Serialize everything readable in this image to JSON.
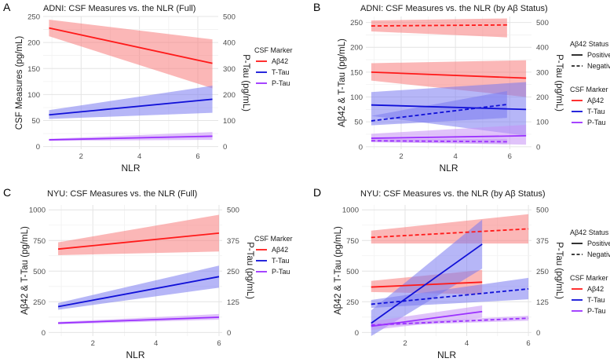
{
  "figure": {
    "panels": [
      "A",
      "B",
      "C",
      "D"
    ]
  },
  "chart_data": [
    {
      "panel_letter": "A",
      "type": "line",
      "title": "ADNI: CSF Measures vs. the NLR (Full)",
      "xlabel": "NLR",
      "ylabel": "CSF Measures (pg/mL)",
      "y2label": "P-Tau (pg/mL)",
      "xlim": [
        0.7,
        6.7
      ],
      "ylim": [
        -5,
        250
      ],
      "y2lim": [
        -10,
        500
      ],
      "xticks": [
        2,
        4,
        6
      ],
      "yticks": [
        0,
        50,
        100,
        150,
        200,
        250
      ],
      "y2ticks": [
        0,
        100,
        200,
        300,
        400,
        500
      ],
      "legend": {
        "title": "CSF Marker",
        "position": "right",
        "entries": [
          "Aβ42",
          "T-Tau",
          "P-Tau"
        ]
      },
      "series": [
        {
          "name": "Aβ42",
          "color": "#ff1a1a",
          "band": "#f87b7b",
          "axis": "left",
          "dash": false,
          "x": [
            0.9,
            6.5
          ],
          "y": [
            228,
            160
          ],
          "lo": [
            212,
            112
          ],
          "hi": [
            244,
            206
          ]
        },
        {
          "name": "T-Tau",
          "color": "#1010d8",
          "band": "#7a7af0",
          "axis": "left",
          "dash": false,
          "x": [
            0.9,
            6.5
          ],
          "y": [
            61,
            91
          ],
          "lo": [
            53,
            65
          ],
          "hi": [
            70,
            117
          ]
        },
        {
          "name": "P-Tau",
          "color": "#9b30ff",
          "band": "#c792f5",
          "axis": "right",
          "dash": false,
          "x": [
            0.9,
            6.5
          ],
          "y": [
            26,
            40
          ],
          "lo": [
            22,
            26
          ],
          "hi": [
            30,
            56
          ]
        }
      ]
    },
    {
      "panel_letter": "B",
      "type": "line",
      "title": "ADNI: CSF Measures vs. the NLR (by Aβ Status)",
      "xlabel": "NLR",
      "ylabel": "Aβ42 & T-Tau (pg/mL)",
      "y2label": "P-Tau (pg/mL)",
      "xlim": [
        0.7,
        6.8
      ],
      "ylim": [
        -5,
        262
      ],
      "y2lim": [
        -10,
        524
      ],
      "xticks": [
        2,
        4,
        6
      ],
      "yticks": [
        0,
        50,
        100,
        150,
        200,
        250
      ],
      "y2ticks": [
        0,
        100,
        200,
        300,
        400,
        500
      ],
      "legend": {
        "status_title": "Aβ42 Status",
        "status_entries": [
          "Positive",
          "Negative"
        ],
        "title": "CSF Marker",
        "position": "right",
        "entries": [
          "Aβ42",
          "T-Tau",
          "P-Tau"
        ]
      },
      "series": [
        {
          "name": "Aβ42 Positive",
          "color": "#ff1a1a",
          "band": "#f87b7b",
          "axis": "left",
          "dash": false,
          "x": [
            0.9,
            6.6
          ],
          "y": [
            150,
            138
          ],
          "lo": [
            133,
            100
          ],
          "hi": [
            168,
            174
          ]
        },
        {
          "name": "Aβ42 Negative",
          "color": "#ff1a1a",
          "band": "#f87b7b",
          "axis": "left",
          "dash": true,
          "x": [
            0.9,
            5.9
          ],
          "y": [
            243,
            245
          ],
          "lo": [
            232,
            220
          ],
          "hi": [
            254,
            258
          ]
        },
        {
          "name": "T-Tau Positive",
          "color": "#1010d8",
          "band": "#7a7af0",
          "axis": "left",
          "dash": false,
          "x": [
            0.9,
            6.6
          ],
          "y": [
            84,
            75
          ],
          "lo": [
            62,
            22
          ],
          "hi": [
            110,
            130
          ]
        },
        {
          "name": "T-Tau Negative",
          "color": "#1010d8",
          "band": "#7a7af0",
          "axis": "left",
          "dash": true,
          "x": [
            0.9,
            5.9
          ],
          "y": [
            52,
            85
          ],
          "lo": [
            43,
            58
          ],
          "hi": [
            62,
            112
          ]
        },
        {
          "name": "P-Tau Positive",
          "color": "#9b30ff",
          "band": "#c792f5",
          "axis": "right",
          "dash": false,
          "x": [
            0.9,
            6.6
          ],
          "y": [
            34,
            44
          ],
          "lo": [
            20,
            8
          ],
          "hi": [
            52,
            88
          ]
        },
        {
          "name": "P-Tau Negative",
          "color": "#9b30ff",
          "band": "#c792f5",
          "axis": "right",
          "dash": true,
          "x": [
            0.9,
            5.9
          ],
          "y": [
            24,
            20
          ],
          "lo": [
            18,
            10
          ],
          "hi": [
            30,
            32
          ]
        }
      ]
    },
    {
      "panel_letter": "C",
      "type": "line",
      "title": "NYU: CSF Measures vs. the NLR (Full)",
      "xlabel": "NLR",
      "ylabel": "Aβ42 & T-Tau (pg/mL)",
      "y2label": "P-Tau (pg/mL)",
      "xlim": [
        0.6,
        6.1
      ],
      "ylim": [
        -30,
        1040
      ],
      "y2lim": [
        -15,
        520
      ],
      "xticks": [
        2,
        4,
        6
      ],
      "yticks": [
        0,
        250,
        500,
        750,
        1000
      ],
      "y2ticks": [
        0,
        125,
        250,
        375,
        500
      ],
      "legend": {
        "title": "CSF Marker",
        "position": "right",
        "entries": [
          "Aβ42",
          "T-Tau",
          "P-Tau"
        ]
      },
      "series": [
        {
          "name": "Aβ42",
          "color": "#ff1a1a",
          "band": "#f87b7b",
          "axis": "left",
          "dash": false,
          "x": [
            0.9,
            6.0
          ],
          "y": [
            680,
            810
          ],
          "lo": [
            630,
            660
          ],
          "hi": [
            735,
            960
          ]
        },
        {
          "name": "T-Tau",
          "color": "#1010d8",
          "band": "#7a7af0",
          "axis": "left",
          "dash": false,
          "x": [
            0.9,
            6.0
          ],
          "y": [
            210,
            455
          ],
          "lo": [
            185,
            365
          ],
          "hi": [
            240,
            545
          ]
        },
        {
          "name": "P-Tau",
          "color": "#9b30ff",
          "band": "#c792f5",
          "axis": "right",
          "dash": false,
          "x": [
            0.9,
            6.0
          ],
          "y": [
            38,
            62
          ],
          "lo": [
            33,
            52
          ],
          "hi": [
            43,
            75
          ]
        }
      ]
    },
    {
      "panel_letter": "D",
      "type": "line",
      "title": "NYU: CSF Measures vs. the NLR (by Aβ Status)",
      "xlabel": "NLR",
      "ylabel": "Aβ42 & T-Tau (pg/mL)",
      "y2label": "P-Tau (pg/mL)",
      "xlim": [
        0.6,
        6.1
      ],
      "ylim": [
        -30,
        1040
      ],
      "y2lim": [
        -15,
        520
      ],
      "xticks": [
        2,
        4,
        6
      ],
      "yticks": [
        0,
        250,
        500,
        750,
        1000
      ],
      "y2ticks": [
        0,
        125,
        250,
        375,
        500
      ],
      "legend": {
        "status_title": "Aβ42 Status",
        "status_entries": [
          "Positive",
          "Negative"
        ],
        "title": "CSF Marker",
        "position": "right",
        "entries": [
          "Aβ42",
          "T-Tau",
          "P-Tau"
        ]
      },
      "series": [
        {
          "name": "Aβ42 Positive",
          "color": "#ff1a1a",
          "band": "#f87b7b",
          "axis": "left",
          "dash": false,
          "x": [
            0.9,
            4.5
          ],
          "y": [
            370,
            410
          ],
          "lo": [
            330,
            310
          ],
          "hi": [
            420,
            510
          ]
        },
        {
          "name": "Aβ42 Negative",
          "color": "#ff1a1a",
          "band": "#f87b7b",
          "axis": "left",
          "dash": true,
          "x": [
            0.9,
            6.0
          ],
          "y": [
            775,
            845
          ],
          "lo": [
            725,
            725
          ],
          "hi": [
            830,
            965
          ]
        },
        {
          "name": "T-Tau Positive",
          "color": "#1010d8",
          "band": "#7a7af0",
          "axis": "left",
          "dash": false,
          "x": [
            0.9,
            4.5
          ],
          "y": [
            75,
            720
          ],
          "lo": [
            -30,
            520
          ],
          "hi": [
            180,
            920
          ]
        },
        {
          "name": "T-Tau Negative",
          "color": "#1010d8",
          "band": "#7a7af0",
          "axis": "left",
          "dash": true,
          "x": [
            0.9,
            6.0
          ],
          "y": [
            230,
            355
          ],
          "lo": [
            200,
            270
          ],
          "hi": [
            265,
            445
          ]
        },
        {
          "name": "P-Tau Positive",
          "color": "#9b30ff",
          "band": "#c792f5",
          "axis": "right",
          "dash": false,
          "x": [
            0.9,
            4.5
          ],
          "y": [
            25,
            85
          ],
          "lo": [
            10,
            60
          ],
          "hi": [
            45,
            110
          ]
        },
        {
          "name": "P-Tau Negative",
          "color": "#9b30ff",
          "band": "#c792f5",
          "axis": "right",
          "dash": true,
          "x": [
            0.9,
            6.0
          ],
          "y": [
            30,
            58
          ],
          "lo": [
            25,
            48
          ],
          "hi": [
            36,
            68
          ]
        }
      ]
    }
  ]
}
